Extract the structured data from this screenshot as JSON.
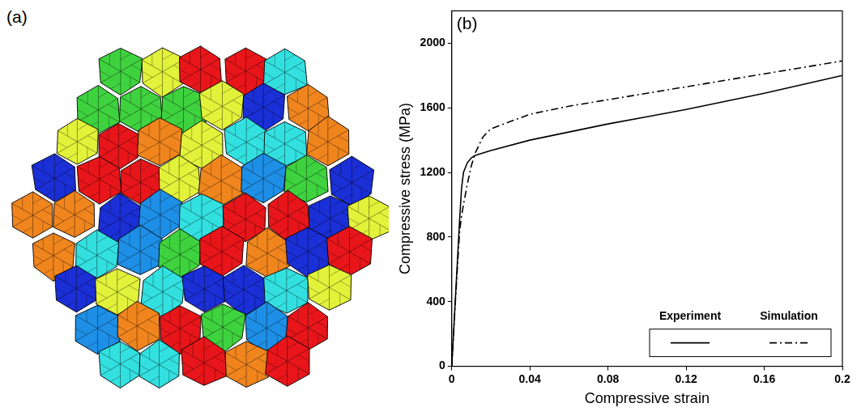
{
  "panel_a": {
    "label": "(a)"
  },
  "chart_data": {
    "type": "line",
    "title": "(b)",
    "x_label": "Compressive strain",
    "y_label": "Compressive stress (MPa)",
    "x": [
      0,
      0.002,
      0.004,
      0.005,
      0.006,
      0.008,
      0.01,
      0.012,
      0.016,
      0.02,
      0.04,
      0.06,
      0.08,
      0.1,
      0.12,
      0.14,
      0.16,
      0.18,
      0.2
    ],
    "series": [
      {
        "name": "Experiment",
        "color": "#000000",
        "line_style": "solid",
        "values": [
          0,
          450,
          900,
          1100,
          1200,
          1260,
          1290,
          1305,
          1320,
          1335,
          1400,
          1450,
          1500,
          1545,
          1590,
          1640,
          1690,
          1745,
          1800
        ]
      },
      {
        "name": "Simulation",
        "color": "#000000",
        "line_style": "dashdot",
        "values": [
          0,
          430,
          830,
          930,
          1000,
          1130,
          1240,
          1320,
          1420,
          1470,
          1560,
          1610,
          1650,
          1690,
          1730,
          1770,
          1810,
          1850,
          1890
        ]
      }
    ],
    "xlim": [
      0,
      0.2
    ],
    "xticks": [
      0,
      0.04,
      0.08,
      0.12,
      0.16,
      0.2
    ],
    "ylim": [
      0,
      2200
    ],
    "yticks": [
      0,
      400,
      800,
      1200,
      1600,
      2000
    ],
    "grid": false,
    "legend": "lower right"
  }
}
